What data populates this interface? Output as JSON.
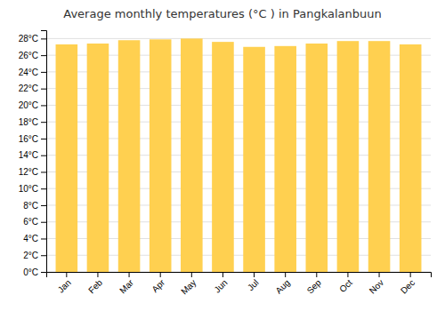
{
  "chart_data": {
    "type": "bar",
    "title": "Average monthly temperatures (°C ) in Pangkalanbuun",
    "categories": [
      "Jan",
      "Feb",
      "Mar",
      "Apr",
      "May",
      "Jun",
      "Jul",
      "Aug",
      "Sep",
      "Oct",
      "Nov",
      "Dec"
    ],
    "values": [
      27.3,
      27.4,
      27.8,
      27.9,
      28.0,
      27.6,
      27.0,
      27.1,
      27.4,
      27.7,
      27.7,
      27.3
    ],
    "color": "#FFD050",
    "ylim": [
      0,
      29
    ],
    "yticks": [
      {
        "value": 0,
        "label": "0°C"
      },
      {
        "value": 2,
        "label": "2°C"
      },
      {
        "value": 4,
        "label": "4°C"
      },
      {
        "value": 6,
        "label": "6°C"
      },
      {
        "value": 8,
        "label": "8°C"
      },
      {
        "value": 10,
        "label": "10°C"
      },
      {
        "value": 12,
        "label": "12°C"
      },
      {
        "value": 14,
        "label": "14°C"
      },
      {
        "value": 16,
        "label": "16°C"
      },
      {
        "value": 18,
        "label": "18°C"
      },
      {
        "value": 20,
        "label": "20°C"
      },
      {
        "value": 22,
        "label": "22°C"
      },
      {
        "value": 24,
        "label": "24°C"
      },
      {
        "value": 26,
        "label": "26°C"
      },
      {
        "value": 28,
        "label": "28°C"
      }
    ],
    "grid": true
  }
}
